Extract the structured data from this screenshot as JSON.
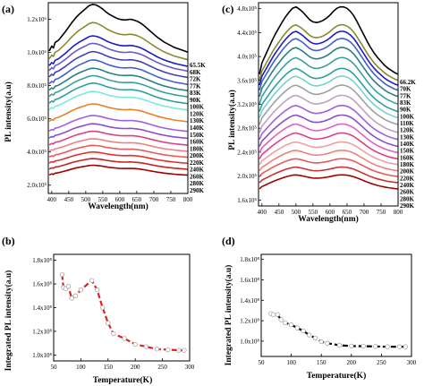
{
  "chart_data": [
    {
      "id": "a",
      "letter": "(a)",
      "type": "line",
      "xlabel": "Wavelength(nm)",
      "ylabel": "PL intensity(a.u)",
      "xlim": [
        390,
        800
      ],
      "ylim": [
        150000,
        1300000
      ],
      "xticks": [
        400,
        450,
        500,
        550,
        600,
        650,
        700,
        750,
        800
      ],
      "yticks": [
        {
          "value": 200000,
          "label": "2.0x10⁵"
        },
        {
          "value": 400000,
          "label": "4.0x10⁵"
        },
        {
          "value": 600000,
          "label": "6.0x10⁵"
        },
        {
          "value": 800000,
          "label": "8.0x10⁵"
        },
        {
          "value": 1000000,
          "label": "1.0x10⁶"
        },
        {
          "value": 1200000,
          "label": "1.2x10⁶"
        }
      ],
      "x": [
        393,
        400,
        405,
        410,
        420,
        430,
        440,
        450,
        460,
        470,
        480,
        490,
        500,
        510,
        520,
        530,
        540,
        550,
        560,
        570,
        580,
        590,
        600,
        610,
        620,
        630,
        640,
        650,
        660,
        670,
        680,
        690,
        700,
        710,
        720,
        730,
        740,
        750,
        760,
        770,
        780,
        790,
        800
      ],
      "shape": [
        0.22,
        0.3,
        0.27,
        0.36,
        0.4,
        0.47,
        0.54,
        0.62,
        0.7,
        0.77,
        0.83,
        0.88,
        0.93,
        0.98,
        1.0,
        0.99,
        0.96,
        0.92,
        0.87,
        0.83,
        0.8,
        0.77,
        0.75,
        0.74,
        0.74,
        0.75,
        0.74,
        0.72,
        0.69,
        0.65,
        0.6,
        0.55,
        0.5,
        0.45,
        0.41,
        0.37,
        0.34,
        0.31,
        0.28,
        0.26,
        0.24,
        0.22,
        0.2
      ],
      "series": [
        {
          "name": "65.5K",
          "color": "#000000",
          "base": 930000,
          "peak": 1290000
        },
        {
          "name": "68K",
          "color": "#8a8a2e",
          "base": 900000,
          "peak": 1180000
        },
        {
          "name": "72K",
          "color": "#1c1cc8",
          "base": 870000,
          "peak": 1100000
        },
        {
          "name": "77K",
          "color": "#6a5acd",
          "base": 845000,
          "peak": 1055000
        },
        {
          "name": "83K",
          "color": "#4040b0",
          "base": 810000,
          "peak": 1005000
        },
        {
          "name": "90K",
          "color": "#4060d0",
          "base": 770000,
          "peak": 955000
        },
        {
          "name": "100K",
          "color": "#2a7f7f",
          "base": 735000,
          "peak": 905000
        },
        {
          "name": "120K",
          "color": "#3aa0a0",
          "base": 700000,
          "peak": 860000
        },
        {
          "name": "130K",
          "color": "#2aa1a1",
          "base": 660000,
          "peak": 815000
        },
        {
          "name": "140K",
          "color": "#78e8e8",
          "base": 625000,
          "peak": 765000
        },
        {
          "name": "150K",
          "color": "#e8822a",
          "base": 555000,
          "peak": 690000
        },
        {
          "name": "160K",
          "color": "#a060e0",
          "base": 500000,
          "peak": 620000
        },
        {
          "name": "180K",
          "color": "#8c4cd0",
          "base": 460000,
          "peak": 570000
        },
        {
          "name": "200K",
          "color": "#e04080",
          "base": 420000,
          "peak": 525000
        },
        {
          "name": "220K",
          "color": "#f08080",
          "base": 385000,
          "peak": 480000
        },
        {
          "name": "240K",
          "color": "#e85a5a",
          "base": 350000,
          "peak": 440000
        },
        {
          "name": "260K",
          "color": "#e03030",
          "base": 315000,
          "peak": 400000
        },
        {
          "name": "280K",
          "color": "#c82020",
          "base": 280000,
          "peak": 360000
        },
        {
          "name": "290K",
          "color": "#a00000",
          "base": 245000,
          "peak": 320000
        }
      ]
    },
    {
      "id": "c",
      "letter": "(c)",
      "type": "line",
      "xlabel": "Wavelength(nm)",
      "ylabel": "PL intensity(a.u)",
      "xlim": [
        390,
        800
      ],
      "ylim": [
        150000,
        490000
      ],
      "xticks": [
        400,
        450,
        500,
        550,
        600,
        650,
        700,
        750,
        800
      ],
      "yticks": [
        {
          "value": 160000,
          "label": "1.6x10⁵"
        },
        {
          "value": 200000,
          "label": "2.0x10⁵"
        },
        {
          "value": 240000,
          "label": "2.4x10⁵"
        },
        {
          "value": 280000,
          "label": "2.8x10⁵"
        },
        {
          "value": 320000,
          "label": "3.2x10⁵"
        },
        {
          "value": 360000,
          "label": "3.6x10⁵"
        },
        {
          "value": 400000,
          "label": "4.0x10⁵"
        },
        {
          "value": 440000,
          "label": "4.4x10⁵"
        },
        {
          "value": 480000,
          "label": "4.8x10⁵"
        }
      ],
      "x": [
        393,
        400,
        410,
        420,
        430,
        440,
        450,
        460,
        470,
        480,
        490,
        500,
        510,
        520,
        530,
        540,
        550,
        560,
        570,
        580,
        590,
        600,
        610,
        620,
        630,
        640,
        650,
        660,
        670,
        680,
        690,
        700,
        710,
        720,
        730,
        740,
        750,
        760,
        770,
        780,
        790,
        800
      ],
      "shape": [
        0.1,
        0.25,
        0.35,
        0.45,
        0.55,
        0.64,
        0.72,
        0.8,
        0.87,
        0.93,
        0.98,
        1.0,
        0.97,
        0.93,
        0.88,
        0.83,
        0.8,
        0.79,
        0.8,
        0.82,
        0.85,
        0.89,
        0.94,
        0.98,
        1.0,
        1.0,
        0.98,
        0.94,
        0.88,
        0.8,
        0.71,
        0.62,
        0.53,
        0.45,
        0.38,
        0.32,
        0.27,
        0.22,
        0.18,
        0.15,
        0.12,
        0.1
      ],
      "series": [
        {
          "name": "66.2K",
          "color": "#000000",
          "base": 358000,
          "peak": 483000
        },
        {
          "name": "70K",
          "color": "#8a8a2e",
          "base": 350000,
          "peak": 453000
        },
        {
          "name": "77K",
          "color": "#1c1cc8",
          "base": 342000,
          "peak": 442000
        },
        {
          "name": "83K",
          "color": "#4060d0",
          "base": 334000,
          "peak": 430000
        },
        {
          "name": "90K",
          "color": "#2a7f7f",
          "base": 324000,
          "peak": 415000
        },
        {
          "name": "100K",
          "color": "#3aa0a0",
          "base": 312000,
          "peak": 398000
        },
        {
          "name": "110K",
          "color": "#2aa1a1",
          "base": 300000,
          "peak": 380000
        },
        {
          "name": "120K",
          "color": "#78d0d0",
          "base": 290000,
          "peak": 367000
        },
        {
          "name": "130K",
          "color": "#a0a0a0",
          "base": 279000,
          "peak": 352000
        },
        {
          "name": "140K",
          "color": "#c0a0c0",
          "base": 266000,
          "peak": 335000
        },
        {
          "name": "150K",
          "color": "#a060e0",
          "base": 255000,
          "peak": 318000
        },
        {
          "name": "160K",
          "color": "#8c4cd0",
          "base": 244000,
          "peak": 302000
        },
        {
          "name": "180K",
          "color": "#e060c0",
          "base": 234000,
          "peak": 287000
        },
        {
          "name": "200K",
          "color": "#e04080",
          "base": 224000,
          "peak": 272000
        },
        {
          "name": "220K",
          "color": "#f0a0a0",
          "base": 215000,
          "peak": 257000
        },
        {
          "name": "240K",
          "color": "#f08080",
          "base": 205000,
          "peak": 243000
        },
        {
          "name": "260K",
          "color": "#e85a5a",
          "base": 196000,
          "peak": 229000
        },
        {
          "name": "280K",
          "color": "#d03030",
          "base": 186000,
          "peak": 215000
        },
        {
          "name": "290K",
          "color": "#a00000",
          "base": 176000,
          "peak": 202000
        }
      ]
    },
    {
      "id": "b",
      "letter": "(b)",
      "type": "line",
      "xlabel": "Temperature(K)",
      "ylabel": "Integrated PL intensity(a.u)",
      "xlim": [
        50,
        300
      ],
      "ylim": [
        95000000,
        185000000
      ],
      "xticks": [
        50,
        100,
        150,
        200,
        250,
        300
      ],
      "yticks": [
        {
          "value": 100000000,
          "label": "1.0x10⁸"
        },
        {
          "value": 120000000,
          "label": "1.2x10⁸"
        },
        {
          "value": 140000000,
          "label": "1.4x10⁸"
        },
        {
          "value": 160000000,
          "label": "1.6x10⁸"
        },
        {
          "value": 180000000,
          "label": "1.8x10⁸"
        }
      ],
      "color": "#e02020",
      "x": [
        65.5,
        68,
        72,
        77,
        83,
        90,
        100,
        120,
        130,
        140,
        150,
        160,
        180,
        200,
        220,
        240,
        260,
        280,
        290
      ],
      "values": [
        168000000,
        157000000,
        156000000,
        158000000,
        148000000,
        150000000,
        155000000,
        163000000,
        155000000,
        140000000,
        127000000,
        118000000,
        114000000,
        109000000,
        107000000,
        105000000,
        104500000,
        104000000,
        104000000
      ]
    },
    {
      "id": "d",
      "letter": "(d)",
      "type": "line",
      "xlabel": "Temperature(K)",
      "ylabel": "Integrated PL intensity(a.u)",
      "xlim": [
        50,
        300
      ],
      "ylim": [
        85000000,
        185000000
      ],
      "xticks": [
        50,
        100,
        150,
        200,
        250,
        300
      ],
      "yticks": [
        {
          "value": 100000000,
          "label": "1.0x10⁸"
        },
        {
          "value": 120000000,
          "label": "1.2x10⁸"
        },
        {
          "value": 140000000,
          "label": "1.4x10⁸"
        },
        {
          "value": 160000000,
          "label": "1.6x10⁸"
        },
        {
          "value": 180000000,
          "label": "1.8x10⁸"
        }
      ],
      "color": "#000000",
      "x": [
        66.2,
        70,
        77,
        83,
        90,
        100,
        110,
        120,
        130,
        140,
        150,
        160,
        180,
        200,
        220,
        240,
        260,
        280,
        290
      ],
      "values": [
        127000000,
        126000000,
        126000000,
        121000000,
        118000000,
        116000000,
        113000000,
        110000000,
        106000000,
        103000000,
        99500000,
        98000000,
        96000000,
        95200000,
        95000000,
        94800000,
        94500000,
        94500000,
        94500000
      ]
    }
  ]
}
